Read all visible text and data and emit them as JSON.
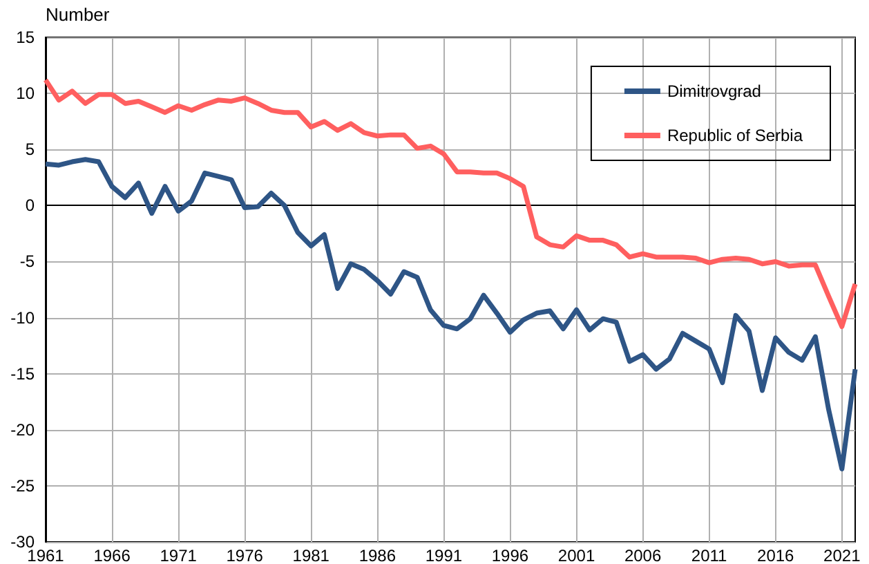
{
  "chart_data": {
    "type": "line",
    "ylabel": "Number",
    "x": [
      1961,
      1962,
      1963,
      1964,
      1965,
      1966,
      1967,
      1968,
      1969,
      1970,
      1971,
      1972,
      1973,
      1974,
      1975,
      1976,
      1977,
      1978,
      1979,
      1980,
      1981,
      1982,
      1983,
      1984,
      1985,
      1986,
      1987,
      1988,
      1989,
      1990,
      1991,
      1992,
      1993,
      1994,
      1995,
      1996,
      1997,
      1998,
      1999,
      2000,
      2001,
      2002,
      2003,
      2004,
      2005,
      2006,
      2007,
      2008,
      2009,
      2010,
      2011,
      2012,
      2013,
      2014,
      2015,
      2016,
      2017,
      2018,
      2019,
      2020,
      2021,
      2022
    ],
    "series": [
      {
        "name": "Dimitrovgrad",
        "color": "#2e5586",
        "values": [
          3.7,
          3.6,
          3.9,
          4.1,
          3.9,
          1.7,
          0.7,
          2.0,
          -0.7,
          1.7,
          -0.5,
          0.4,
          2.9,
          2.6,
          2.3,
          -0.2,
          -0.1,
          1.1,
          0.0,
          -2.4,
          -3.6,
          -2.6,
          -7.4,
          -5.2,
          -5.7,
          -6.7,
          -7.9,
          -5.9,
          -6.4,
          -9.3,
          -10.7,
          -11.0,
          -10.1,
          -8.0,
          -9.6,
          -11.3,
          -10.2,
          -9.6,
          -9.4,
          -11.0,
          -9.3,
          -11.1,
          -10.1,
          -10.4,
          -13.9,
          -13.3,
          -14.6,
          -13.7,
          -11.4,
          -12.1,
          -12.8,
          -15.8,
          -9.8,
          -11.2,
          -16.5,
          -11.8,
          -13.1,
          -13.8,
          -11.7,
          -18.2,
          -23.5,
          -14.6
        ]
      },
      {
        "name": "Republic of Serbia",
        "color": "#ff5f5f",
        "values": [
          11.2,
          9.4,
          10.2,
          9.1,
          9.9,
          9.9,
          9.1,
          9.3,
          8.8,
          8.3,
          8.9,
          8.5,
          9.0,
          9.4,
          9.3,
          9.6,
          9.1,
          8.5,
          8.3,
          8.3,
          7.0,
          7.5,
          6.7,
          7.3,
          6.5,
          6.2,
          6.3,
          6.3,
          5.1,
          5.3,
          4.6,
          3.0,
          3.0,
          2.9,
          2.9,
          2.4,
          1.7,
          -2.8,
          -3.5,
          -3.7,
          -2.7,
          -3.1,
          -3.1,
          -3.5,
          -4.6,
          -4.3,
          -4.6,
          -4.6,
          -4.6,
          -4.7,
          -5.1,
          -4.8,
          -4.7,
          -4.8,
          -5.2,
          -5.0,
          -5.4,
          -5.3,
          -5.3,
          -8.1,
          -10.8,
          -7.0
        ]
      }
    ],
    "xlim": [
      1961,
      2022
    ],
    "xticks": [
      1961,
      1966,
      1971,
      1976,
      1981,
      1986,
      1991,
      1996,
      2001,
      2006,
      2011,
      2016,
      2021
    ],
    "ylim": [
      -30,
      15
    ],
    "yticks": [
      -30,
      -25,
      -20,
      -15,
      -10,
      -5,
      0,
      5,
      10,
      15
    ],
    "grid": true,
    "legend": "top right",
    "marker": "none",
    "line_style": "solid"
  }
}
